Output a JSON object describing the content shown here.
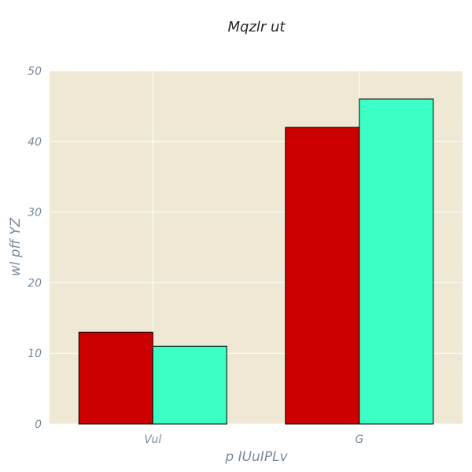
{
  "chart_data": {
    "type": "bar",
    "title": "Mqzlr ut",
    "xlabel": "p IUuIPLv",
    "ylabel": "wl pff YZ",
    "categories": [
      "Vul",
      "G"
    ],
    "series": [
      {
        "values": [
          13,
          42
        ],
        "color": "#cc0000"
      },
      {
        "values": [
          11,
          46
        ],
        "color": "#3bffc4"
      }
    ],
    "ylim": [
      0,
      50
    ],
    "yticks": [
      0,
      10,
      20,
      30,
      40,
      50
    ],
    "grid": true,
    "legend": "none",
    "colors": {
      "background": "#efe8d5",
      "grid": "#ffffff",
      "bar_edge": "#000000"
    }
  }
}
